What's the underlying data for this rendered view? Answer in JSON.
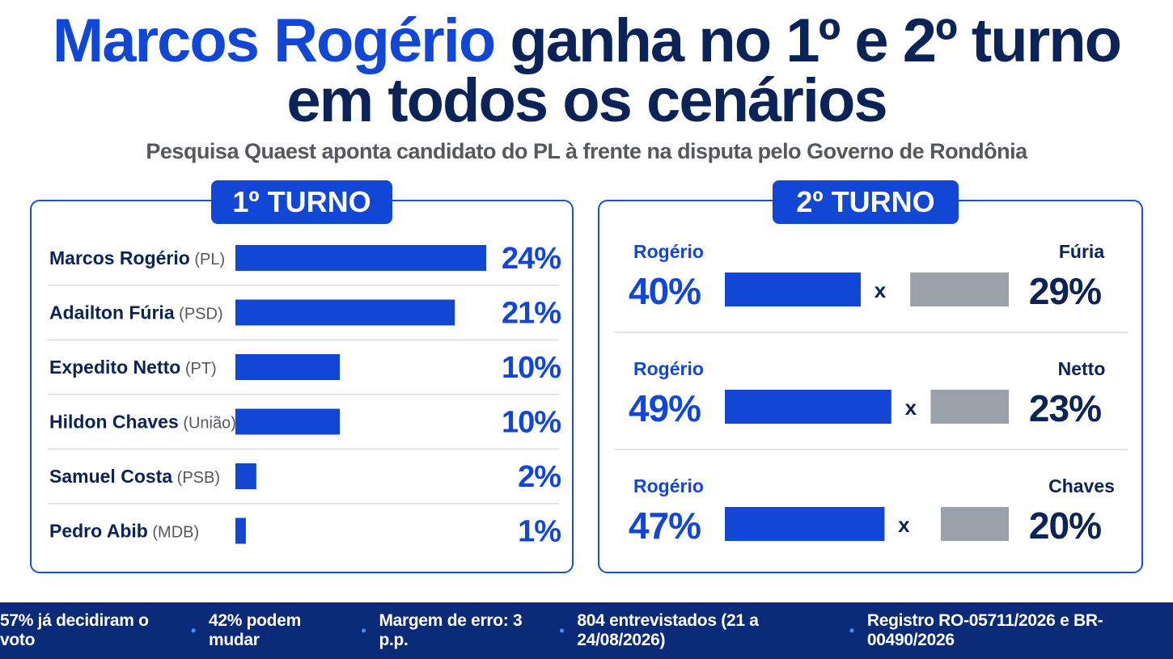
{
  "title": {
    "highlight": "Marcos Rogério",
    "line1_rest": " ganha no 1º e 2º turno",
    "line2": "em todos os cenários"
  },
  "subtitle": "Pesquisa Quaest aponta candidato do PL à frente na disputa pelo Governo de Rondônia",
  "colors": {
    "primary": "#1247d6",
    "navy": "#0b2356",
    "gray_bar": "#9aa1ab",
    "footer_bg": "#0b2a78"
  },
  "chart_data": [
    {
      "type": "bar",
      "title": "1º TURNO",
      "categories": [
        "Marcos Rogério",
        "Adailton Fúria",
        "Expedito Netto",
        "Hildon Chaves",
        "Samuel Costa",
        "Pedro Abib"
      ],
      "parties": [
        "(PL)",
        "(PSD)",
        "(PT)",
        "(União)",
        "(PSB)",
        "(MDB)"
      ],
      "values": [
        24,
        21,
        10,
        10,
        2,
        1
      ],
      "value_labels": [
        "24%",
        "21%",
        "10%",
        "10%",
        "2%",
        "1%"
      ],
      "unit": "%"
    },
    {
      "type": "bar",
      "title": "2º TURNO",
      "separator": "x",
      "matchups": [
        {
          "a": "Rogério",
          "a_value": 40,
          "a_label": "40%",
          "b": "Fúria",
          "b_value": 29,
          "b_label": "29%"
        },
        {
          "a": "Rogério",
          "a_value": 49,
          "a_label": "49%",
          "b": "Netto",
          "b_value": 23,
          "b_label": "23%"
        },
        {
          "a": "Rogério",
          "a_value": 47,
          "a_label": "47%",
          "b": "Chaves",
          "b_value": 20,
          "b_label": "20%"
        }
      ]
    }
  ],
  "footer": {
    "items": [
      "57% já decidiram o voto",
      "42% podem mudar",
      "Margem de erro: 3 p.p.",
      "804 entrevistados (21 a 24/08/2026)",
      "Registro RO-05711/2026 e BR-00490/2026"
    ],
    "separator": "•"
  }
}
